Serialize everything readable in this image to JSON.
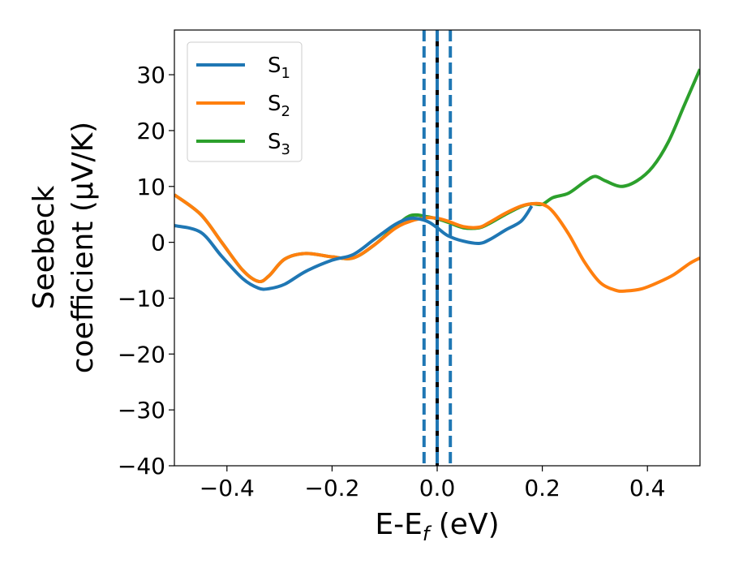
{
  "chart_data": {
    "type": "line",
    "title": "",
    "xlabel": {
      "main": "E-E",
      "sub": "f",
      "unit": " (eV)"
    },
    "ylabel": {
      "line1": "Seebeck",
      "line2": "coefficient  (μV/K)"
    },
    "xlim": [
      -0.5,
      0.5
    ],
    "ylim": [
      -40,
      38
    ],
    "xticks": [
      -0.4,
      -0.2,
      0.0,
      0.2,
      0.4
    ],
    "xtick_labels": [
      "−0.4",
      "−0.2",
      "0.0",
      "0.2",
      "0.4"
    ],
    "yticks": [
      -40,
      -30,
      -20,
      -10,
      0,
      10,
      20,
      30
    ],
    "ytick_labels": [
      "−40",
      "−30",
      "−20",
      "−10",
      "0",
      "10",
      "20",
      "30"
    ],
    "grid": false,
    "legend_position": "top-left",
    "series": [
      {
        "name": "S",
        "sub": "1",
        "color": "#1f77b4",
        "x": [
          -0.5,
          -0.45,
          -0.41,
          -0.37,
          -0.34,
          -0.32,
          -0.29,
          -0.25,
          -0.2,
          -0.16,
          -0.12,
          -0.08,
          -0.05,
          -0.02,
          0.0,
          0.02,
          0.05,
          0.08,
          0.1,
          0.13,
          0.16,
          0.18
        ],
        "y": [
          3,
          1.8,
          -2.5,
          -6.5,
          -8.2,
          -8.3,
          -7.5,
          -5.2,
          -3.2,
          -2.2,
          0.5,
          3.2,
          4.3,
          3.8,
          2.6,
          1.2,
          0.2,
          -0.2,
          0.5,
          2.2,
          3.8,
          6.5
        ]
      },
      {
        "name": "S",
        "sub": "2",
        "color": "#ff7f0e",
        "x": [
          -0.5,
          -0.45,
          -0.41,
          -0.37,
          -0.34,
          -0.32,
          -0.29,
          -0.25,
          -0.2,
          -0.16,
          -0.12,
          -0.08,
          -0.05,
          -0.02,
          0.0,
          0.02,
          0.05,
          0.08,
          0.1,
          0.13,
          0.16,
          0.18,
          0.2,
          0.22,
          0.25,
          0.28,
          0.31,
          0.34,
          0.36,
          0.39,
          0.42,
          0.45,
          0.48,
          0.5
        ],
        "y": [
          8.5,
          5.0,
          0.0,
          -5.0,
          -7.0,
          -6.0,
          -3.0,
          -2.0,
          -2.6,
          -2.8,
          -0.5,
          2.5,
          3.8,
          4.4,
          4.3,
          3.8,
          2.8,
          2.7,
          3.6,
          5.2,
          6.5,
          6.9,
          6.8,
          5.5,
          1.5,
          -3.5,
          -7.2,
          -8.6,
          -8.7,
          -8.3,
          -7.2,
          -5.8,
          -3.8,
          -2.8
        ]
      },
      {
        "name": "S",
        "sub": "3",
        "color": "#2ca02c",
        "x": [
          -0.5,
          -0.45,
          -0.41,
          -0.37,
          -0.34,
          -0.32,
          -0.29,
          -0.25,
          -0.2,
          -0.16,
          -0.12,
          -0.08,
          -0.05,
          -0.02,
          0.0,
          0.02,
          0.05,
          0.08,
          0.1,
          0.13,
          0.16,
          0.18,
          0.2,
          0.22,
          0.25,
          0.28,
          0.3,
          0.32,
          0.35,
          0.38,
          0.41,
          0.44,
          0.47,
          0.5
        ],
        "y": [
          8.5,
          5.0,
          0.0,
          -5.0,
          -7.0,
          -6.0,
          -3.0,
          -2.0,
          -2.6,
          -2.8,
          -0.5,
          2.8,
          4.8,
          4.6,
          4.2,
          3.6,
          2.6,
          2.6,
          3.4,
          5.0,
          6.4,
          6.9,
          6.8,
          8.0,
          8.8,
          10.8,
          11.8,
          11.0,
          10.0,
          11.0,
          13.5,
          18.0,
          24.5,
          31.0
        ]
      }
    ],
    "vlines": [
      {
        "x": 0.0,
        "color": "#000000",
        "style": "solid"
      },
      {
        "x": -0.025,
        "color": "#1f77b4",
        "style": "dashed"
      },
      {
        "x": 0.0,
        "color": "#1f77b4",
        "style": "dashed"
      },
      {
        "x": 0.025,
        "color": "#1f77b4",
        "style": "dashed"
      }
    ]
  }
}
